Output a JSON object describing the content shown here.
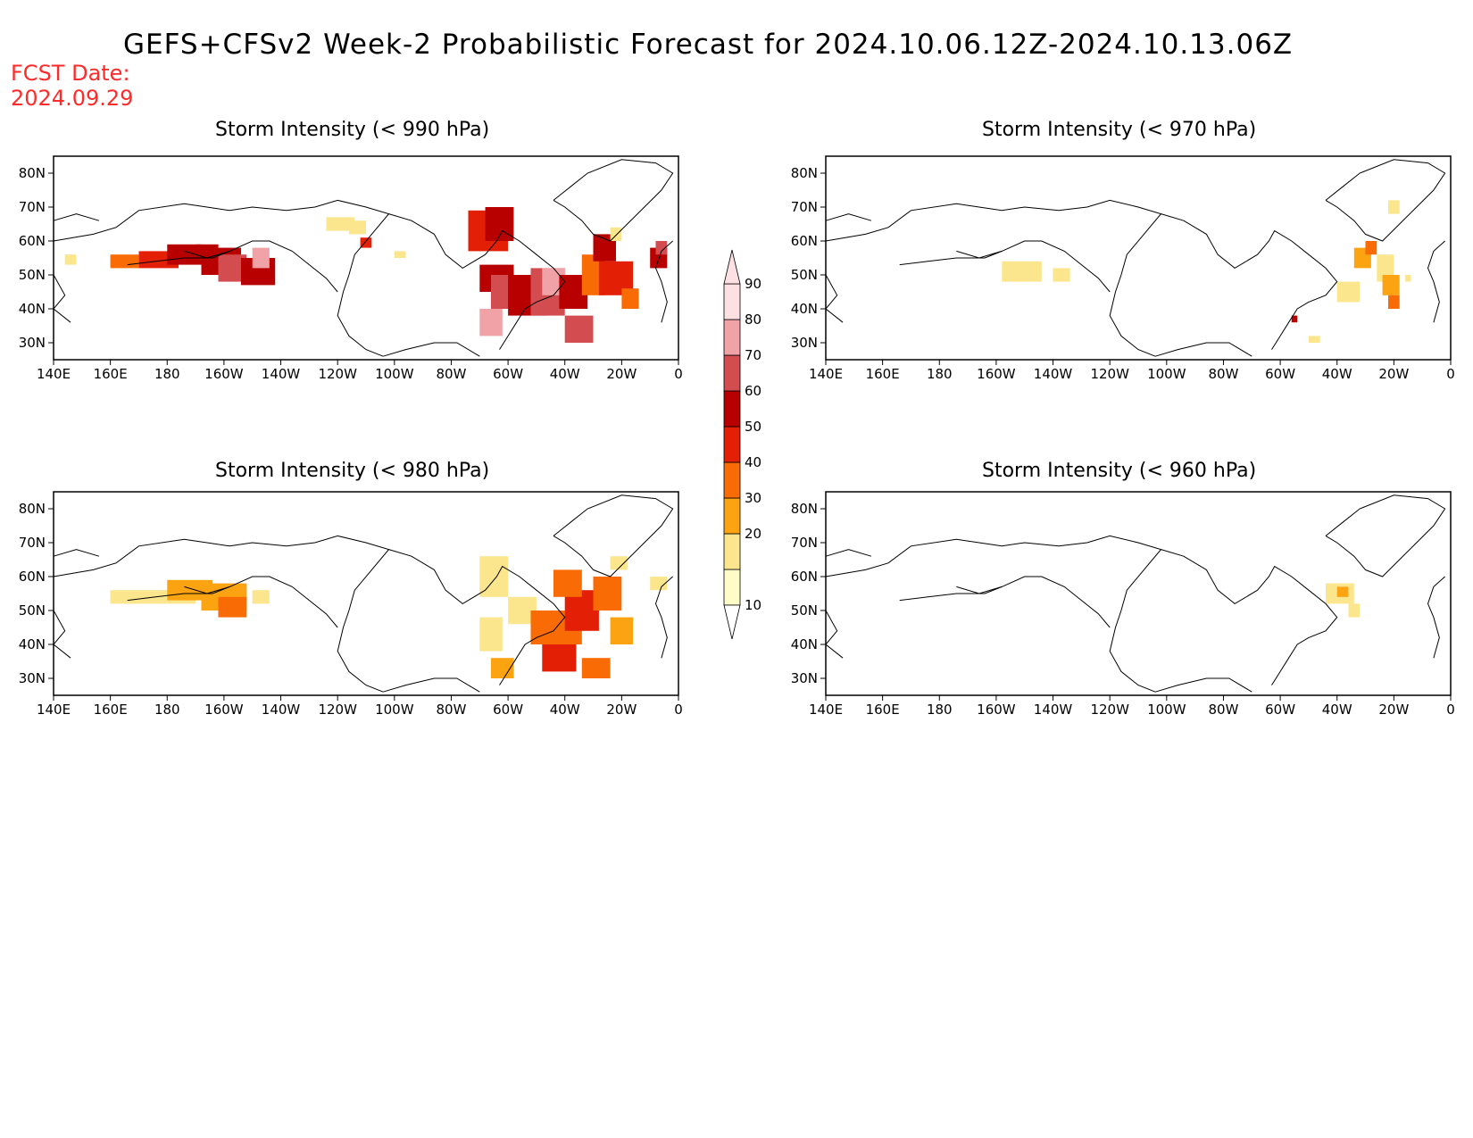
{
  "title": "GEFS+CFSv2 Week-2 Probabilistic Forecast for 2024.10.06.12Z-2024.10.13.06Z",
  "forecast_date_label": "FCST Date:",
  "forecast_date": "2024.09.29",
  "lat_labels": [
    "80N",
    "70N",
    "60N",
    "50N",
    "40N",
    "30N"
  ],
  "lon_labels": [
    "140E",
    "160E",
    "180",
    "160W",
    "140W",
    "120W",
    "100W",
    "80W",
    "60W",
    "40W",
    "20W",
    "0"
  ],
  "colorbar": {
    "labels": [
      "10",
      "20",
      "30",
      "40",
      "50",
      "60",
      "70",
      "80",
      "90"
    ],
    "colors": [
      "#fffcc8",
      "#fbe58d",
      "#fca312",
      "#f96b04",
      "#e31f05",
      "#b80000",
      "#d24c50",
      "#f0a2a6",
      "#fde0e2"
    ]
  },
  "panels": [
    {
      "id": "p990",
      "title": "Storm Intensity (< 990 hPa)"
    },
    {
      "id": "p970",
      "title": "Storm Intensity (< 970 hPa)"
    },
    {
      "id": "p980",
      "title": "Storm Intensity (< 980 hPa)"
    },
    {
      "id": "p960",
      "title": "Storm Intensity (< 960 hPa)"
    }
  ]
}
